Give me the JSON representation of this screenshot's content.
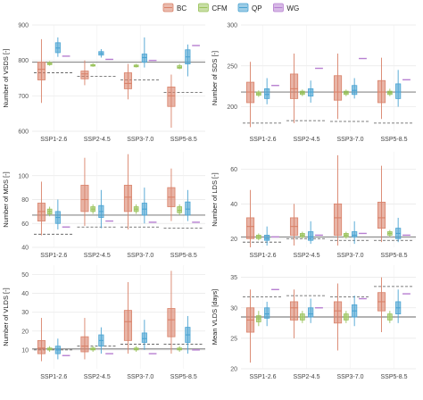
{
  "legend": {
    "position": "top-center",
    "items": [
      {
        "label": "BC",
        "color": "#d9826a"
      },
      {
        "label": "CFM",
        "color": "#9ac35b"
      },
      {
        "label": "QP",
        "color": "#4aa3d2"
      },
      {
        "label": "WG",
        "color": "#b77fd1"
      }
    ]
  },
  "chart_data": [
    {
      "type": "box",
      "ylabel": "Number of VSDS [-]",
      "ylim": [
        600,
        900
      ],
      "yticks": [
        600,
        700,
        800,
        900
      ],
      "categories": [
        "SSP1-2.6",
        "SSP2-4.5",
        "SSP3-7.0",
        "SSP5-8.5"
      ],
      "solid_ref": 795,
      "dashed_ref": [
        765,
        755,
        745,
        710
      ],
      "series": [
        {
          "name": "BC",
          "boxes": [
            [
              680,
              745,
              775,
              795,
              860
            ],
            [
              730,
              748,
              762,
              770,
              800
            ],
            [
              690,
              720,
              735,
              765,
              790
            ],
            [
              610,
              670,
              700,
              725,
              760
            ]
          ]
        },
        {
          "name": "CFM",
          "boxes": [
            [
              785,
              788,
              791,
              794,
              798
            ],
            [
              782,
              784,
              786,
              788,
              792
            ],
            [
              780,
              782,
              784,
              787,
              790
            ],
            [
              775,
              778,
              780,
              785,
              790
            ]
          ]
        },
        {
          "name": "QP",
          "boxes": [
            [
              810,
              822,
              835,
              850,
              865
            ],
            [
              808,
              815,
              820,
              825,
              832
            ],
            [
              780,
              795,
              808,
              818,
              865
            ],
            [
              755,
              790,
              810,
              830,
              845
            ]
          ]
        },
        {
          "name": "WG",
          "boxes": [
            [
              812,
              812,
              812,
              812,
              812
            ],
            [
              803,
              803,
              803,
              803,
              803
            ],
            [
              800,
              800,
              800,
              800,
              800
            ],
            [
              842,
              842,
              842,
              842,
              842
            ]
          ]
        }
      ]
    },
    {
      "type": "box",
      "ylabel": "Number of SDS [-]",
      "ylim": [
        170,
        300
      ],
      "yticks": [
        200,
        250,
        300
      ],
      "categories": [
        "SSP1-2.6",
        "SSP2-4.5",
        "SSP3-7.0",
        "SSP5-8.5"
      ],
      "solid_ref": 218,
      "dashed_ref": [
        180,
        183,
        182,
        180
      ],
      "series": [
        {
          "name": "BC",
          "boxes": [
            [
              175,
              205,
              218,
              230,
              255
            ],
            [
              180,
              210,
              222,
              240,
              265
            ],
            [
              185,
              208,
              218,
              238,
              265
            ],
            [
              185,
              205,
              218,
              232,
              260
            ]
          ]
        },
        {
          "name": "CFM",
          "boxes": [
            [
              212,
              214,
              216,
              218,
              220
            ],
            [
              213,
              215,
              217,
              219,
              221
            ],
            [
              213,
              215,
              217,
              219,
              221
            ],
            [
              213,
              215,
              217,
              219,
              222
            ]
          ]
        },
        {
          "name": "QP",
          "boxes": [
            [
              203,
              210,
              215,
              222,
              235
            ],
            [
              205,
              213,
              218,
              222,
              232
            ],
            [
              210,
              215,
              220,
              226,
              235
            ],
            [
              200,
              210,
              218,
              228,
              245
            ]
          ]
        },
        {
          "name": "WG",
          "boxes": [
            [
              226,
              226,
              226,
              226,
              226
            ],
            [
              247,
              247,
              247,
              247,
              247
            ],
            [
              259,
              259,
              259,
              259,
              259
            ],
            [
              233,
              233,
              233,
              233,
              233
            ]
          ]
        }
      ]
    },
    {
      "type": "box",
      "ylabel": "Number of MDS [-]",
      "ylim": [
        40,
        120
      ],
      "yticks": [
        40,
        60,
        80,
        100
      ],
      "categories": [
        "SSP1-2.6",
        "SSP2-4.5",
        "SSP3-7.0",
        "SSP5-8.5"
      ],
      "solid_ref": 67,
      "dashed_ref": [
        51,
        57,
        57,
        56
      ],
      "series": [
        {
          "name": "BC",
          "boxes": [
            [
              50,
              62,
              70,
              77,
              95
            ],
            [
              58,
              70,
              80,
              92,
              115
            ],
            [
              55,
              70,
              82,
              92,
              118
            ],
            [
              62,
              74,
              82,
              90,
              106
            ]
          ]
        },
        {
          "name": "CFM",
          "boxes": [
            [
              66,
              68,
              70,
              72,
              74
            ],
            [
              68,
              70,
              72,
              74,
              76
            ],
            [
              68,
              70,
              72,
              74,
              76
            ],
            [
              67,
              69,
              71,
              74,
              76
            ]
          ]
        },
        {
          "name": "QP",
          "boxes": [
            [
              55,
              60,
              65,
              70,
              80
            ],
            [
              56,
              65,
              70,
              75,
              88
            ],
            [
              60,
              67,
              72,
              77,
              90
            ],
            [
              62,
              67,
              72,
              78,
              88
            ]
          ]
        },
        {
          "name": "WG",
          "boxes": [
            [
              57,
              57,
              57,
              57,
              57
            ],
            [
              62,
              62,
              62,
              62,
              62
            ],
            [
              61,
              61,
              61,
              61,
              61
            ],
            [
              61,
              61,
              61,
              61,
              61
            ]
          ]
        }
      ]
    },
    {
      "type": "box",
      "ylabel": "Number of LDS [-]",
      "ylim": [
        15,
        70
      ],
      "yticks": [
        20,
        40,
        60
      ],
      "categories": [
        "SSP1-2.6",
        "SSP2-4.5",
        "SSP3-7.0",
        "SSP5-8.5"
      ],
      "solid_ref": 21,
      "dashed_ref": [
        18,
        20,
        19,
        19
      ],
      "series": [
        {
          "name": "BC",
          "boxes": [
            [
              15,
              20,
              27,
              32,
              48
            ],
            [
              16,
              22,
              27,
              32,
              40
            ],
            [
              16,
              22,
              32,
              40,
              68
            ],
            [
              18,
              26,
              32,
              41,
              62
            ]
          ]
        },
        {
          "name": "CFM",
          "boxes": [
            [
              19,
              20,
              21,
              22,
              23
            ],
            [
              20,
              21,
              22,
              23,
              24
            ],
            [
              20,
              21,
              22,
              23,
              24
            ],
            [
              21,
              22,
              23,
              24,
              25
            ]
          ]
        },
        {
          "name": "QP",
          "boxes": [
            [
              16,
              19,
              20,
              22,
              27
            ],
            [
              17,
              19,
              21,
              24,
              30
            ],
            [
              17,
              21,
              22,
              24,
              30
            ],
            [
              18,
              20,
              23,
              26,
              32
            ]
          ]
        },
        {
          "name": "WG",
          "boxes": [
            [
              21,
              21,
              21,
              21,
              21
            ],
            [
              22,
              22,
              22,
              22,
              22
            ],
            [
              23,
              23,
              23,
              23,
              23
            ],
            [
              22,
              22,
              22,
              22,
              22
            ]
          ]
        }
      ]
    },
    {
      "type": "box",
      "ylabel": "Number of VLDS [-]",
      "ylim": [
        0,
        55
      ],
      "yticks": [
        10,
        20,
        30,
        40,
        50
      ],
      "categories": [
        "SSP1-2.6",
        "SSP2-4.5",
        "SSP3-7.0",
        "SSP5-8.5"
      ],
      "solid_ref": 10.5,
      "dashed_ref": [
        10,
        12,
        13,
        13
      ],
      "series": [
        {
          "name": "BC",
          "boxes": [
            [
              4,
              8,
              11,
              15,
              27
            ],
            [
              5,
              9,
              12,
              17,
              27
            ],
            [
              8,
              15,
              25,
              31,
              46
            ],
            [
              8,
              17,
              26,
              32,
              52
            ]
          ]
        },
        {
          "name": "CFM",
          "boxes": [
            [
              9,
              10,
              10.5,
              11,
              12
            ],
            [
              9,
              10,
              10.5,
              11,
              12
            ],
            [
              9,
              10,
              10.5,
              11,
              12
            ],
            [
              9,
              10,
              10.5,
              11,
              12
            ]
          ]
        },
        {
          "name": "QP",
          "boxes": [
            [
              5,
              8,
              10,
              12,
              16
            ],
            [
              8,
              12,
              15,
              18,
              22
            ],
            [
              10,
              14,
              16,
              19,
              26
            ],
            [
              8,
              14,
              18,
              22,
              28
            ]
          ]
        },
        {
          "name": "WG",
          "boxes": [
            [
              7,
              7,
              7,
              7,
              7
            ],
            [
              8,
              8,
              8,
              8,
              8
            ],
            [
              8,
              8,
              8,
              8,
              8
            ],
            [
              10,
              10,
              10,
              10,
              10
            ]
          ]
        }
      ]
    },
    {
      "type": "box",
      "ylabel": "Mean VLDS [days]",
      "ylim": [
        20,
        37
      ],
      "yticks": [
        20,
        25,
        30,
        35
      ],
      "categories": [
        "SSP1-2.6",
        "SSP2-4.5",
        "SSP3-7.0",
        "SSP5-8.5"
      ],
      "solid_ref": 28.5,
      "dashed_ref": [
        31.8,
        32,
        31.8,
        33.5
      ],
      "series": [
        {
          "name": "BC",
          "boxes": [
            [
              21,
              26,
              28,
              30,
              33
            ],
            [
              25,
              28,
              30,
              31,
              33
            ],
            [
              23,
              27.5,
              29.5,
              31,
              34
            ],
            [
              26,
              29.5,
              31,
              32.5,
              35
            ]
          ]
        },
        {
          "name": "CFM",
          "boxes": [
            [
              27,
              27.7,
              28.2,
              28.7,
              29.5
            ],
            [
              27.5,
              28,
              28.5,
              29,
              29.5
            ],
            [
              27.5,
              28,
              28.5,
              29,
              29.5
            ],
            [
              27.5,
              28,
              28.5,
              29,
              29.5
            ]
          ]
        },
        {
          "name": "QP",
          "boxes": [
            [
              27,
              28.3,
              29,
              30,
              31
            ],
            [
              27.5,
              28.5,
              29,
              30,
              31.5
            ],
            [
              27,
              28.5,
              29.5,
              30.5,
              32
            ],
            [
              27.5,
              29,
              30,
              31,
              33
            ]
          ]
        },
        {
          "name": "WG",
          "boxes": [
            [
              33,
              33,
              33,
              33,
              33
            ],
            [
              30,
              30,
              30,
              30,
              30
            ],
            [
              31.5,
              31.5,
              31.5,
              31.5,
              31.5
            ],
            [
              32.3,
              32.3,
              32.3,
              32.3,
              32.3
            ]
          ]
        }
      ]
    }
  ]
}
